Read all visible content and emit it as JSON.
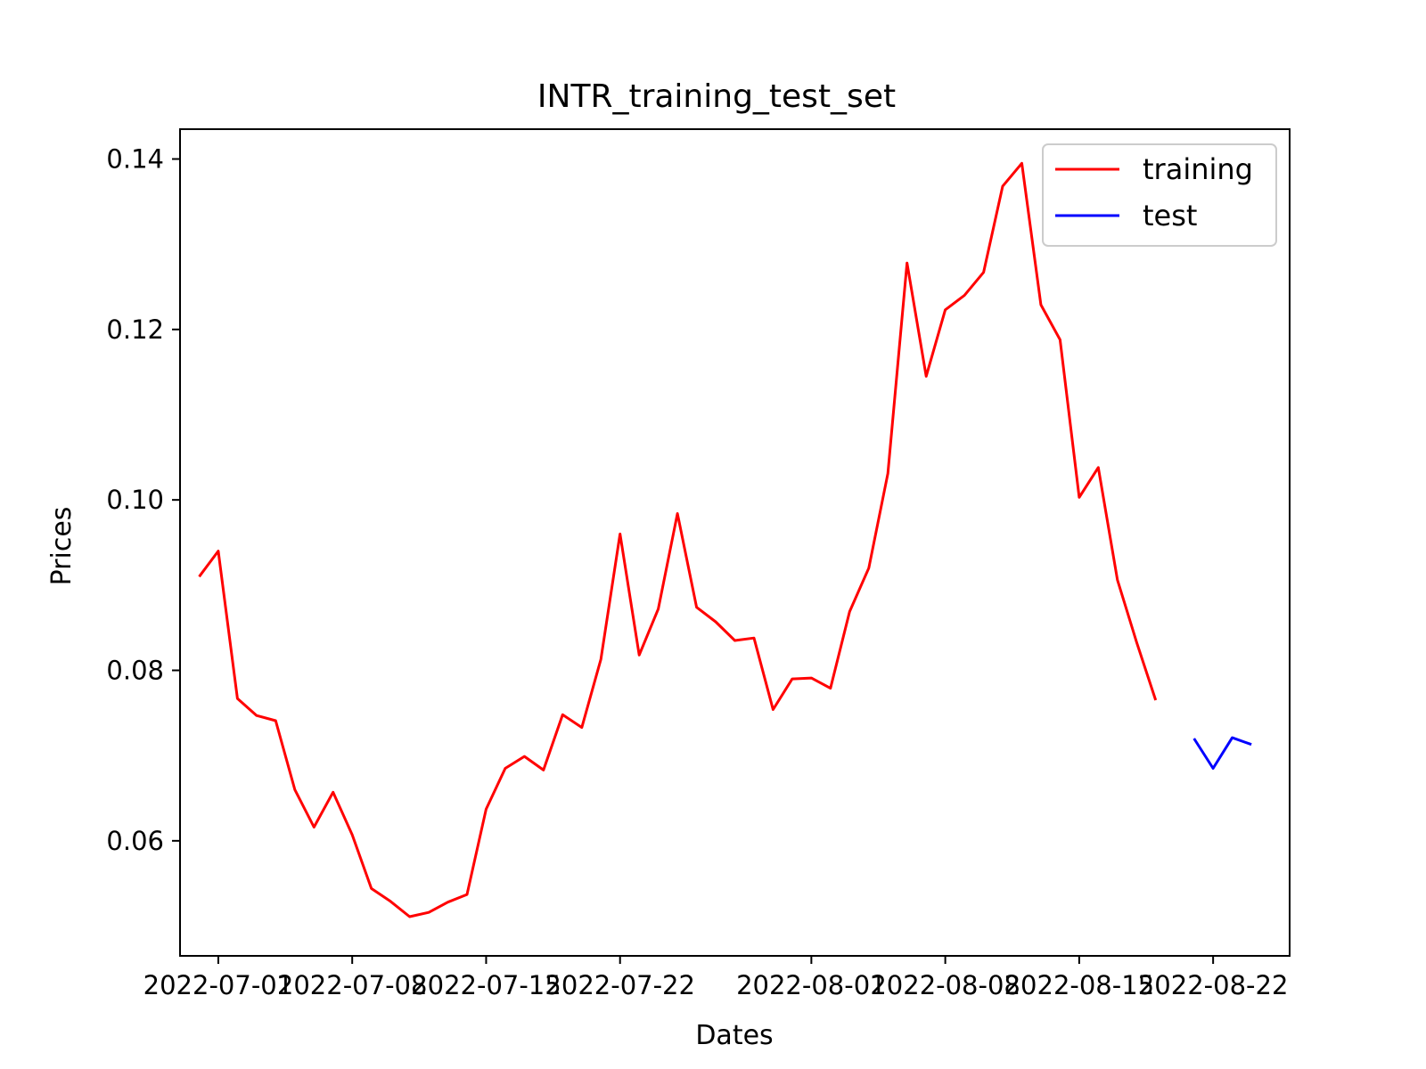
{
  "chart_data": {
    "type": "line",
    "title": "INTR_training_test_set",
    "xlabel": "Dates",
    "ylabel": "Prices",
    "xlim": [
      "2022-06-29",
      "2022-08-26"
    ],
    "ylim": [
      0.0465,
      0.1435
    ],
    "x_ticks": [
      "2022-07-01",
      "2022-07-08",
      "2022-07-15",
      "2022-07-22",
      "2022-08-01",
      "2022-08-08",
      "2022-08-15",
      "2022-08-22"
    ],
    "y_ticks": [
      0.06,
      0.08,
      0.1,
      0.12,
      0.14
    ],
    "y_tick_labels": [
      "0.06",
      "0.08",
      "0.10",
      "0.12",
      "0.14"
    ],
    "legend": {
      "position": "upper-right"
    },
    "grid": false,
    "series": [
      {
        "name": "training",
        "color": "#ff0000",
        "points": [
          [
            "2022-06-30",
            0.091
          ],
          [
            "2022-07-01",
            0.094
          ],
          [
            "2022-07-02",
            0.0767
          ],
          [
            "2022-07-03",
            0.0747
          ],
          [
            "2022-07-04",
            0.0741
          ],
          [
            "2022-07-05",
            0.066
          ],
          [
            "2022-07-06",
            0.0616
          ],
          [
            "2022-07-07",
            0.0657
          ],
          [
            "2022-07-08",
            0.0607
          ],
          [
            "2022-07-09",
            0.0544
          ],
          [
            "2022-07-10",
            0.0529
          ],
          [
            "2022-07-11",
            0.0511
          ],
          [
            "2022-07-12",
            0.0516
          ],
          [
            "2022-07-13",
            0.0528
          ],
          [
            "2022-07-14",
            0.0537
          ],
          [
            "2022-07-15",
            0.0637
          ],
          [
            "2022-07-16",
            0.0685
          ],
          [
            "2022-07-17",
            0.0699
          ],
          [
            "2022-07-18",
            0.0683
          ],
          [
            "2022-07-19",
            0.0748
          ],
          [
            "2022-07-20",
            0.0733
          ],
          [
            "2022-07-21",
            0.0813
          ],
          [
            "2022-07-22",
            0.096
          ],
          [
            "2022-07-23",
            0.0818
          ],
          [
            "2022-07-24",
            0.0872
          ],
          [
            "2022-07-25",
            0.0984
          ],
          [
            "2022-07-26",
            0.0874
          ],
          [
            "2022-07-27",
            0.0857
          ],
          [
            "2022-07-28",
            0.0835
          ],
          [
            "2022-07-29",
            0.0838
          ],
          [
            "2022-07-30",
            0.0754
          ],
          [
            "2022-07-31",
            0.079
          ],
          [
            "2022-08-01",
            0.0791
          ],
          [
            "2022-08-02",
            0.0779
          ],
          [
            "2022-08-03",
            0.0869
          ],
          [
            "2022-08-04",
            0.092
          ],
          [
            "2022-08-05",
            0.1031
          ],
          [
            "2022-08-06",
            0.1278
          ],
          [
            "2022-08-07",
            0.1145
          ],
          [
            "2022-08-08",
            0.1223
          ],
          [
            "2022-08-09",
            0.124
          ],
          [
            "2022-08-10",
            0.1267
          ],
          [
            "2022-08-11",
            0.1368
          ],
          [
            "2022-08-12",
            0.1395
          ],
          [
            "2022-08-13",
            0.1229
          ],
          [
            "2022-08-14",
            0.1188
          ],
          [
            "2022-08-15",
            0.1003
          ],
          [
            "2022-08-16",
            0.1038
          ],
          [
            "2022-08-17",
            0.0906
          ],
          [
            "2022-08-18",
            0.0833
          ],
          [
            "2022-08-19",
            0.0765
          ]
        ]
      },
      {
        "name": "test",
        "color": "#0000ff",
        "points": [
          [
            "2022-08-21",
            0.072
          ],
          [
            "2022-08-22",
            0.0685
          ],
          [
            "2022-08-23",
            0.0721
          ],
          [
            "2022-08-24",
            0.0713
          ]
        ]
      }
    ]
  }
}
